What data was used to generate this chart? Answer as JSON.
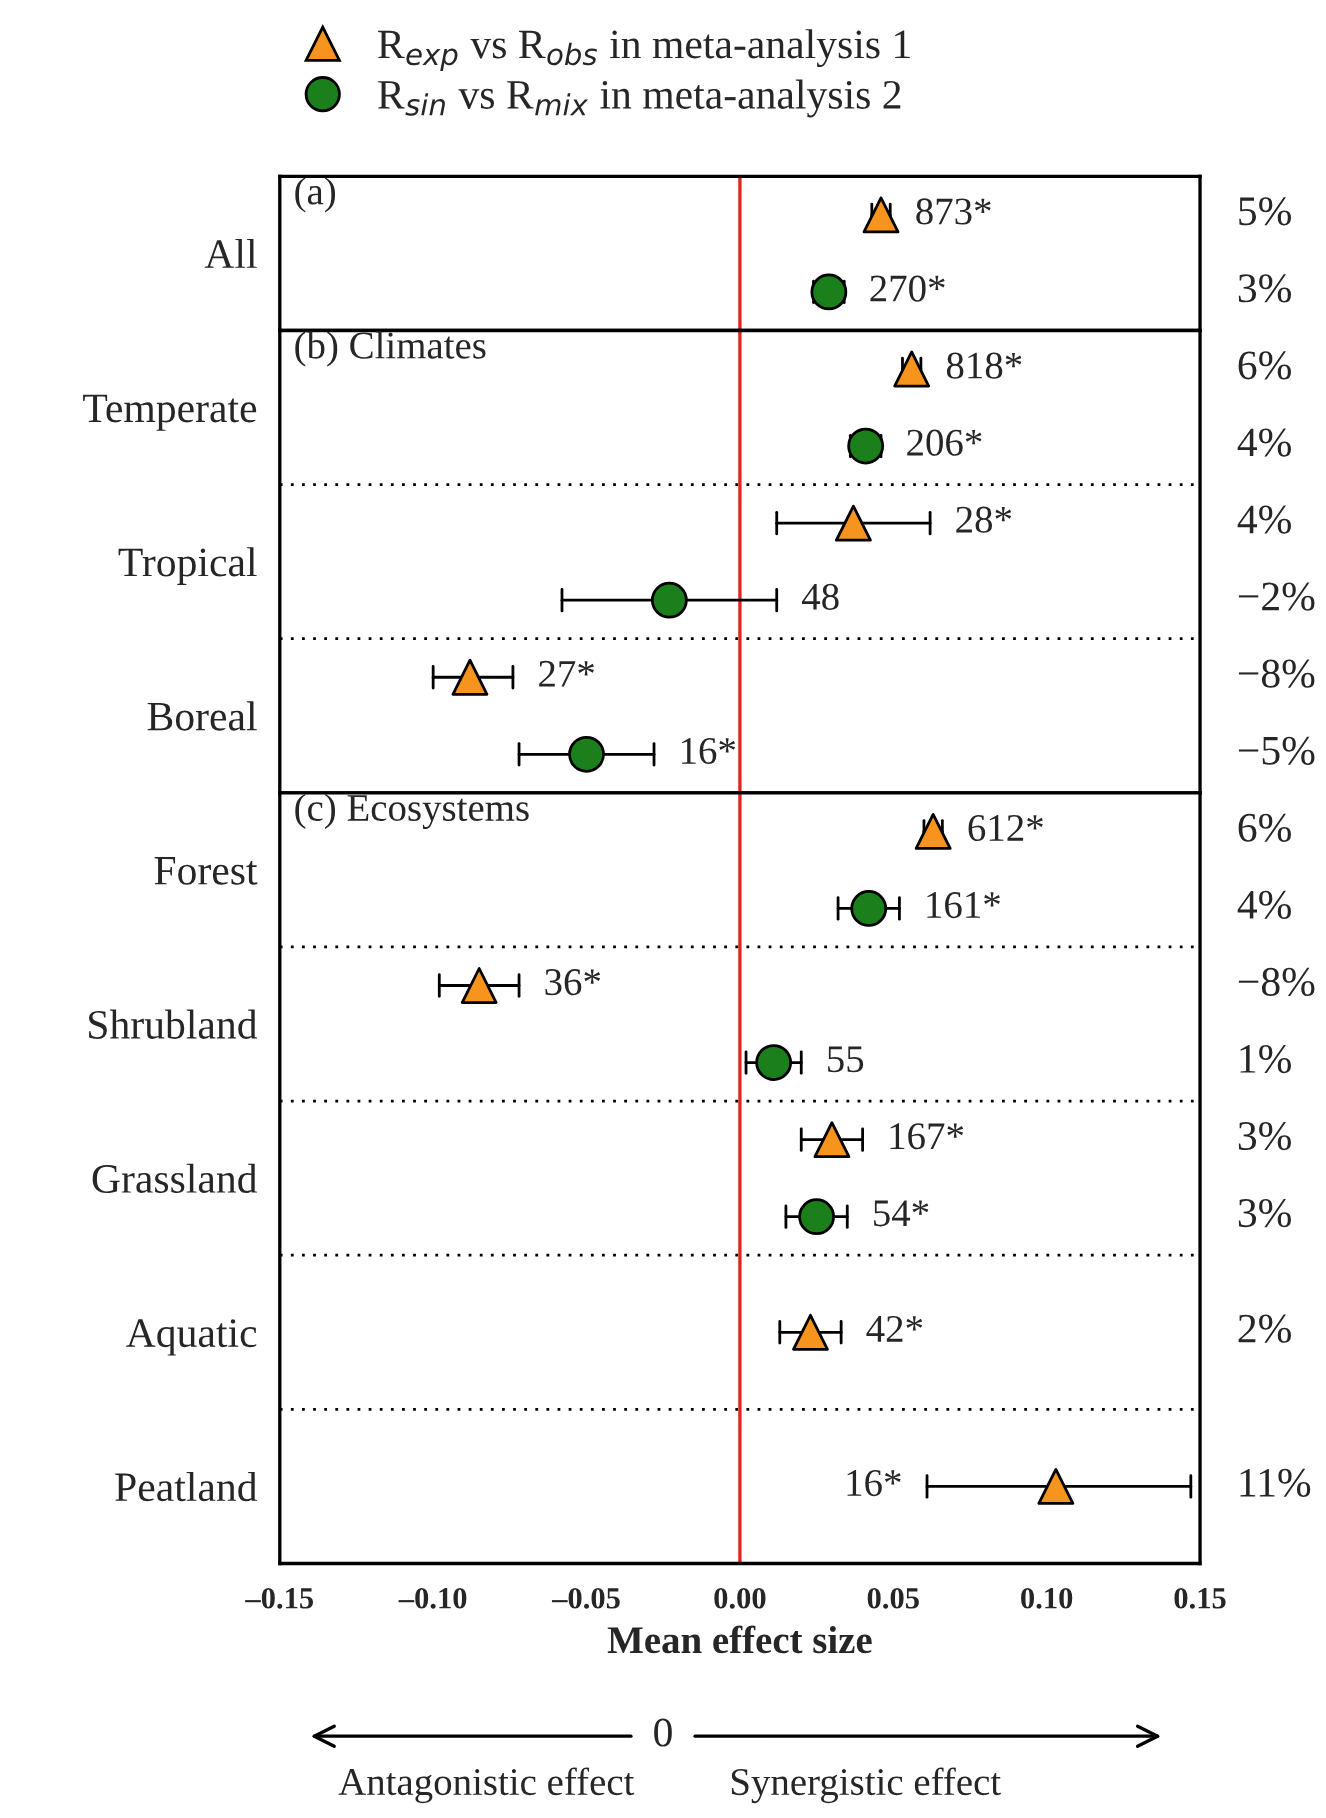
{
  "chart_data": [
    {
      "type": "scatter",
      "orientation": "horizontal",
      "title": "(a)",
      "categories": [
        "All"
      ],
      "legend": "top",
      "tick_labels": "y",
      "xlim": [
        -0.15,
        0.15
      ],
      "ref_lines": [
        {
          "axis": "x",
          "value": 0,
          "color": "#e8231d"
        }
      ],
      "series": [
        {
          "name": "R$_{exp}$ vs R$_{obs}$ in meta-analysis 1",
          "color": "#f7941d",
          "marker": "triangle",
          "values": [
            0.046
          ],
          "errors": [
            0.003
          ]
        },
        {
          "name": "R$_{sin}$ vs R$_{mix}$ in meta-analysis 2",
          "color": "#1b7f1b",
          "marker": "circle",
          "values": [
            0.029
          ],
          "errors": [
            0.005
          ]
        }
      ],
      "annotations": [
        "873*",
        "270*",
        "5%",
        "3%"
      ]
    },
    {
      "type": "scatter",
      "orientation": "horizontal",
      "title": "(b) Climates",
      "categories": [
        "Temperate",
        "Tropical",
        "Boreal"
      ],
      "tick_labels": "y",
      "xlim": [
        -0.15,
        0.15
      ],
      "ref_lines": [
        {
          "axis": "x",
          "value": 0,
          "color": "#e8231d"
        }
      ],
      "series": [
        {
          "color": "#f7941d",
          "marker": "triangle",
          "values": [
            0.056,
            0.037,
            -0.088
          ],
          "errors": [
            0.003,
            [
              0.012,
              0.062
            ],
            [
              -0.1,
              -0.074
            ]
          ]
        },
        {
          "color": "#1b7f1b",
          "marker": "circle",
          "values": [
            0.041,
            -0.023,
            -0.05
          ],
          "errors": [
            0.005,
            [
              -0.058,
              0.012
            ],
            [
              -0.072,
              -0.028
            ]
          ]
        }
      ],
      "annotations": [
        "818*",
        "206*",
        "28*",
        "48",
        "27*",
        "16*",
        "6%",
        "4%",
        "4%",
        "−2%",
        "−8%",
        "−5%"
      ]
    },
    {
      "type": "scatter",
      "orientation": "horizontal",
      "title": "(c) Ecosystems",
      "categories": [
        "Forest",
        "Shrubland",
        "Grassland",
        "Aquatic",
        "Peatland"
      ],
      "xlabel": "Mean effect size",
      "xlim": [
        -0.15,
        0.15
      ],
      "xticks": [
        {
          "value": -0.15,
          "label": "–0.15"
        },
        {
          "value": -0.1,
          "label": "–0.10"
        },
        {
          "value": -0.05,
          "label": "–0.05"
        },
        {
          "value": 0,
          "label": "0.00"
        },
        {
          "value": 0.05,
          "label": "0.05"
        },
        {
          "value": 0.1,
          "label": "0.10"
        },
        {
          "value": 0.15,
          "label": "0.15"
        }
      ],
      "ref_lines": [
        {
          "axis": "x",
          "value": 0,
          "color": "#e8231d"
        }
      ],
      "series": [
        {
          "color": "#f7941d",
          "marker": "triangle",
          "values": [
            0.063,
            -0.085,
            0.03,
            0.023,
            0.103
          ],
          "errors": [
            0.003,
            [
              -0.098,
              -0.072
            ],
            0.01,
            0.01,
            [
              0.061,
              0.147
            ]
          ]
        },
        {
          "color": "#1b7f1b",
          "marker": "circle",
          "values": [
            0.042,
            0.011,
            0.025,
            null,
            null
          ],
          "errors": [
            0.01,
            0.009,
            0.01,
            null,
            null
          ]
        }
      ],
      "annotations": [
        "612*",
        "161*",
        "36*",
        "55",
        "167*",
        "54*",
        "42*",
        "16*",
        "6%",
        "4%",
        "−8%",
        "1%",
        "3%",
        "3%",
        "2%",
        "11%",
        "0",
        "Antagonistic effect",
        "Synergistic effect"
      ]
    }
  ]
}
